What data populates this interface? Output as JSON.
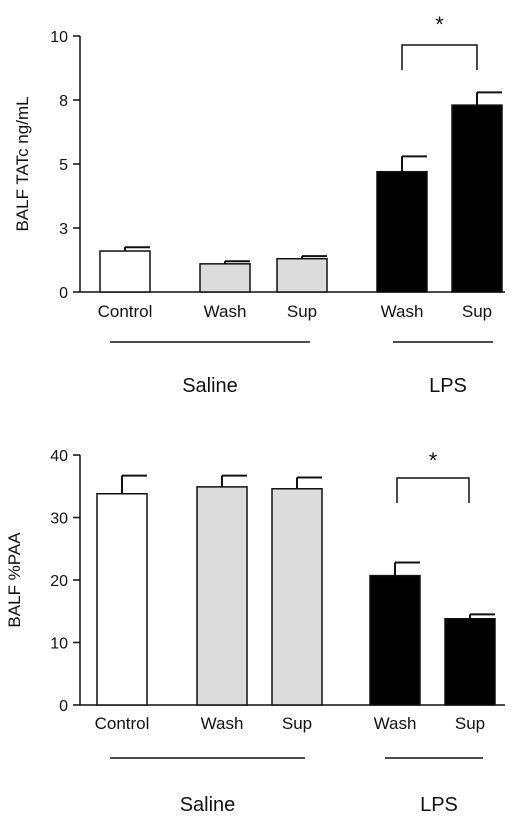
{
  "chart_data": [
    {
      "type": "bar",
      "title": "",
      "xlabel": "",
      "ylabel": "BALF TATc ng/mL",
      "ylim": [
        0,
        10
      ],
      "yticks": [
        "0",
        "3",
        "5",
        "8",
        "10"
      ],
      "categories": [
        "Control",
        "Wash",
        "Sup",
        "Wash",
        "Sup"
      ],
      "values": [
        1.6,
        1.1,
        1.3,
        4.7,
        7.3
      ],
      "errors": [
        0.15,
        0.1,
        0.1,
        0.6,
        0.5
      ],
      "groups": [
        "Saline",
        "LPS"
      ],
      "significance": "*",
      "grid": false,
      "legend": "none"
    },
    {
      "type": "bar",
      "title": "",
      "xlabel": "",
      "ylabel": "BALF %PAA",
      "ylim": [
        0,
        40
      ],
      "yticks": [
        "0",
        "10",
        "20",
        "30",
        "40"
      ],
      "categories": [
        "Control",
        "Wash",
        "Sup",
        "Wash",
        "Sup"
      ],
      "values": [
        33.8,
        34.9,
        34.6,
        20.7,
        13.8
      ],
      "errors": [
        2.9,
        1.8,
        1.8,
        2.1,
        0.7
      ],
      "groups": [
        "Saline",
        "LPS"
      ],
      "significance": "*",
      "grid": false,
      "legend": "none"
    }
  ],
  "colors": {
    "control": "#ffffff",
    "saline": "#dcdcdc",
    "lps": "#000000",
    "axis": "#111111"
  }
}
